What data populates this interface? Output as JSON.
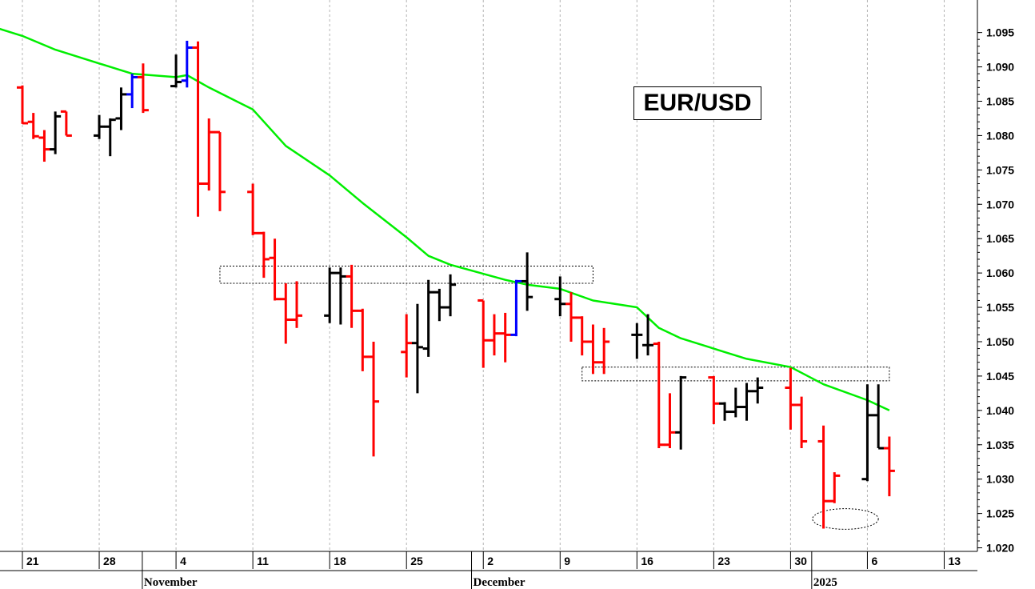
{
  "chart_data": {
    "type": "ohlc",
    "title": "EUR/USD",
    "ylim": [
      1.0175,
      1.0995
    ],
    "y_ticks": [
      "1.020",
      "1.025",
      "1.030",
      "1.035",
      "1.040",
      "1.045",
      "1.050",
      "1.055",
      "1.060",
      "1.065",
      "1.070",
      "1.075",
      "1.080",
      "1.085",
      "1.090",
      "1.095"
    ],
    "x_ticks": [
      {
        "date": "2024-10-21",
        "label": "21"
      },
      {
        "date": "2024-10-28",
        "label": "28"
      },
      {
        "date": "2024-11-04",
        "label": "4"
      },
      {
        "date": "2024-11-11",
        "label": "11"
      },
      {
        "date": "2024-11-18",
        "label": "18"
      },
      {
        "date": "2024-11-25",
        "label": "25"
      },
      {
        "date": "2024-12-02",
        "label": "2"
      },
      {
        "date": "2024-12-09",
        "label": "9"
      },
      {
        "date": "2024-12-16",
        "label": "16"
      },
      {
        "date": "2024-12-23",
        "label": "23"
      },
      {
        "date": "2024-12-30",
        "label": "30"
      },
      {
        "date": "2025-01-06",
        "label": "6"
      },
      {
        "date": "2025-01-13",
        "label": "13"
      }
    ],
    "months": [
      {
        "date": "2024-11-01",
        "label": "November"
      },
      {
        "date": "2024-12-01",
        "label": "December"
      },
      {
        "date": "2025-01-01",
        "label": "2025"
      }
    ],
    "colors": {
      "up": "#000000",
      "down": "#ff0000",
      "outside": "#0000ff",
      "ma": "#00ee00",
      "grid": "#b4b4b4"
    },
    "bars": [
      {
        "d": "2024-10-17",
        "o": 1.0845,
        "h": 1.087,
        "l": 1.0822,
        "c": 1.0833,
        "k": "down"
      },
      {
        "d": "2024-10-18",
        "o": 1.086,
        "h": 1.0873,
        "l": 1.0828,
        "c": 1.0866,
        "k": "down"
      },
      {
        "d": "2024-10-21",
        "o": 1.087,
        "h": 1.0873,
        "l": 1.0817,
        "c": 1.0818,
        "k": "down"
      },
      {
        "d": "2024-10-22",
        "o": 1.082,
        "h": 1.0833,
        "l": 1.0795,
        "c": 1.0799,
        "k": "down"
      },
      {
        "d": "2024-10-23",
        "o": 1.0797,
        "h": 1.0808,
        "l": 1.0762,
        "c": 1.078,
        "k": "down"
      },
      {
        "d": "2024-10-24",
        "o": 1.078,
        "h": 1.0835,
        "l": 1.0773,
        "c": 1.0828,
        "k": "up"
      },
      {
        "d": "2024-10-25",
        "o": 1.0835,
        "h": 1.0835,
        "l": 1.08,
        "c": 1.08,
        "k": "down"
      },
      {
        "d": "2024-10-28",
        "o": 1.08,
        "h": 1.083,
        "l": 1.0795,
        "c": 1.0813,
        "k": "up"
      },
      {
        "d": "2024-10-29",
        "o": 1.0813,
        "h": 1.0825,
        "l": 1.077,
        "c": 1.0823,
        "k": "up"
      },
      {
        "d": "2024-10-30",
        "o": 1.0825,
        "h": 1.087,
        "l": 1.0808,
        "c": 1.086,
        "k": "up"
      },
      {
        "d": "2024-10-31",
        "o": 1.086,
        "h": 1.089,
        "l": 1.084,
        "c": 1.0885,
        "k": "outside"
      },
      {
        "d": "2024-11-01",
        "o": 1.0885,
        "h": 1.0905,
        "l": 1.0833,
        "c": 1.0837,
        "k": "down"
      },
      {
        "d": "2024-11-04",
        "o": 1.0872,
        "h": 1.0918,
        "l": 1.087,
        "c": 1.0878,
        "k": "up"
      },
      {
        "d": "2024-11-05",
        "o": 1.088,
        "h": 1.0938,
        "l": 1.087,
        "c": 1.0928,
        "k": "outside"
      },
      {
        "d": "2024-11-06",
        "o": 1.0928,
        "h": 1.0937,
        "l": 1.0682,
        "c": 1.073,
        "k": "down"
      },
      {
        "d": "2024-11-07",
        "o": 1.073,
        "h": 1.0825,
        "l": 1.072,
        "c": 1.0805,
        "k": "down"
      },
      {
        "d": "2024-11-08",
        "o": 1.0805,
        "h": 1.0805,
        "l": 1.069,
        "c": 1.0718,
        "k": "down"
      },
      {
        "d": "2024-11-11",
        "o": 1.0718,
        "h": 1.073,
        "l": 1.0655,
        "c": 1.0658,
        "k": "down"
      },
      {
        "d": "2024-11-12",
        "o": 1.0658,
        "h": 1.066,
        "l": 1.0593,
        "c": 1.062,
        "k": "down"
      },
      {
        "d": "2024-11-13",
        "o": 1.0622,
        "h": 1.065,
        "l": 1.056,
        "c": 1.0562,
        "k": "down"
      },
      {
        "d": "2024-11-14",
        "o": 1.0562,
        "h": 1.0585,
        "l": 1.0497,
        "c": 1.0532,
        "k": "down"
      },
      {
        "d": "2024-11-15",
        "o": 1.0532,
        "h": 1.0588,
        "l": 1.052,
        "c": 1.0538,
        "k": "down"
      },
      {
        "d": "2024-11-18",
        "o": 1.0538,
        "h": 1.0608,
        "l": 1.0527,
        "c": 1.06,
        "k": "up"
      },
      {
        "d": "2024-11-19",
        "o": 1.06,
        "h": 1.0608,
        "l": 1.0525,
        "c": 1.0595,
        "k": "up"
      },
      {
        "d": "2024-11-20",
        "o": 1.0595,
        "h": 1.0612,
        "l": 1.052,
        "c": 1.0545,
        "k": "down"
      },
      {
        "d": "2024-11-21",
        "o": 1.0545,
        "h": 1.0548,
        "l": 1.0457,
        "c": 1.0478,
        "k": "down"
      },
      {
        "d": "2024-11-22",
        "o": 1.0478,
        "h": 1.05,
        "l": 1.0333,
        "c": 1.0413,
        "k": "down"
      },
      {
        "d": "2024-11-25",
        "o": 1.0485,
        "h": 1.054,
        "l": 1.0448,
        "c": 1.0498,
        "k": "down"
      },
      {
        "d": "2024-11-26",
        "o": 1.0498,
        "h": 1.0555,
        "l": 1.0425,
        "c": 1.0492,
        "k": "up"
      },
      {
        "d": "2024-11-27",
        "o": 1.049,
        "h": 1.059,
        "l": 1.0478,
        "c": 1.0572,
        "k": "up"
      },
      {
        "d": "2024-11-28",
        "o": 1.0572,
        "h": 1.0577,
        "l": 1.053,
        "c": 1.055,
        "k": "up"
      },
      {
        "d": "2024-11-29",
        "o": 1.055,
        "h": 1.0598,
        "l": 1.0537,
        "c": 1.0583,
        "k": "up"
      },
      {
        "d": "2024-12-02",
        "o": 1.056,
        "h": 1.056,
        "l": 1.0462,
        "c": 1.0502,
        "k": "down"
      },
      {
        "d": "2024-12-03",
        "o": 1.0502,
        "h": 1.054,
        "l": 1.048,
        "c": 1.0512,
        "k": "down"
      },
      {
        "d": "2024-12-04",
        "o": 1.0512,
        "h": 1.0542,
        "l": 1.047,
        "c": 1.051,
        "k": "down"
      },
      {
        "d": "2024-12-05",
        "o": 1.051,
        "h": 1.059,
        "l": 1.0508,
        "c": 1.0588,
        "k": "outside"
      },
      {
        "d": "2024-12-06",
        "o": 1.0588,
        "h": 1.063,
        "l": 1.0545,
        "c": 1.0565,
        "k": "up"
      },
      {
        "d": "2024-12-09",
        "o": 1.0562,
        "h": 1.0595,
        "l": 1.0537,
        "c": 1.0555,
        "k": "up"
      },
      {
        "d": "2024-12-10",
        "o": 1.0555,
        "h": 1.0572,
        "l": 1.05,
        "c": 1.0535,
        "k": "down"
      },
      {
        "d": "2024-12-11",
        "o": 1.0535,
        "h": 1.0537,
        "l": 1.048,
        "c": 1.05,
        "k": "down"
      },
      {
        "d": "2024-12-12",
        "o": 1.05,
        "h": 1.0525,
        "l": 1.0453,
        "c": 1.047,
        "k": "down"
      },
      {
        "d": "2024-12-13",
        "o": 1.047,
        "h": 1.052,
        "l": 1.0453,
        "c": 1.05,
        "k": "down"
      },
      {
        "d": "2024-12-16",
        "o": 1.051,
        "h": 1.0527,
        "l": 1.0475,
        "c": 1.051,
        "k": "up"
      },
      {
        "d": "2024-12-17",
        "o": 1.0495,
        "h": 1.054,
        "l": 1.048,
        "c": 1.0495,
        "k": "up"
      },
      {
        "d": "2024-12-18",
        "o": 1.0497,
        "h": 1.05,
        "l": 1.0345,
        "c": 1.035,
        "k": "down"
      },
      {
        "d": "2024-12-19",
        "o": 1.035,
        "h": 1.0425,
        "l": 1.0345,
        "c": 1.0368,
        "k": "down"
      },
      {
        "d": "2024-12-20",
        "o": 1.0368,
        "h": 1.045,
        "l": 1.0343,
        "c": 1.0448,
        "k": "up"
      },
      {
        "d": "2024-12-23",
        "o": 1.0448,
        "h": 1.045,
        "l": 1.038,
        "c": 1.041,
        "k": "down"
      },
      {
        "d": "2024-12-24",
        "o": 1.041,
        "h": 1.0412,
        "l": 1.0385,
        "c": 1.0398,
        "k": "up"
      },
      {
        "d": "2024-12-25",
        "o": 1.0398,
        "h": 1.0433,
        "l": 1.039,
        "c": 1.0405,
        "k": "up"
      },
      {
        "d": "2024-12-26",
        "o": 1.0405,
        "h": 1.044,
        "l": 1.0385,
        "c": 1.0428,
        "k": "up"
      },
      {
        "d": "2024-12-27",
        "o": 1.0428,
        "h": 1.0448,
        "l": 1.041,
        "c": 1.0433,
        "k": "up"
      },
      {
        "d": "2024-12-30",
        "o": 1.0433,
        "h": 1.0462,
        "l": 1.0372,
        "c": 1.0408,
        "k": "down"
      },
      {
        "d": "2024-12-31",
        "o": 1.0408,
        "h": 1.042,
        "l": 1.0345,
        "c": 1.0355,
        "k": "down"
      },
      {
        "d": "2025-01-02",
        "o": 1.0355,
        "h": 1.0378,
        "l": 1.0228,
        "c": 1.0268,
        "k": "down"
      },
      {
        "d": "2025-01-03",
        "o": 1.0268,
        "h": 1.031,
        "l": 1.0265,
        "c": 1.0305,
        "k": "down"
      },
      {
        "d": "2025-01-06",
        "o": 1.03,
        "h": 1.0438,
        "l": 1.0297,
        "c": 1.0393,
        "k": "up"
      },
      {
        "d": "2025-01-07",
        "o": 1.0393,
        "h": 1.0438,
        "l": 1.0345,
        "c": 1.0345,
        "k": "up"
      },
      {
        "d": "2025-01-08",
        "o": 1.0345,
        "h": 1.0362,
        "l": 1.0275,
        "c": 1.0312,
        "k": "down"
      }
    ],
    "moving_average": [
      {
        "d": "2024-10-16",
        "v": 1.097
      },
      {
        "d": "2024-10-21",
        "v": 1.0945
      },
      {
        "d": "2024-10-24",
        "v": 1.0925
      },
      {
        "d": "2024-10-28",
        "v": 1.0905
      },
      {
        "d": "2024-10-31",
        "v": 1.089
      },
      {
        "d": "2024-11-04",
        "v": 1.0885
      },
      {
        "d": "2024-11-05",
        "v": 1.0888
      },
      {
        "d": "2024-11-07",
        "v": 1.087
      },
      {
        "d": "2024-11-11",
        "v": 1.0838
      },
      {
        "d": "2024-11-14",
        "v": 1.0785
      },
      {
        "d": "2024-11-18",
        "v": 1.0742
      },
      {
        "d": "2024-11-21",
        "v": 1.0702
      },
      {
        "d": "2024-11-25",
        "v": 1.0652
      },
      {
        "d": "2024-11-27",
        "v": 1.0625
      },
      {
        "d": "2024-11-29",
        "v": 1.0612
      },
      {
        "d": "2024-12-04",
        "v": 1.059
      },
      {
        "d": "2024-12-06",
        "v": 1.0583
      },
      {
        "d": "2024-12-09",
        "v": 1.0577
      },
      {
        "d": "2024-12-12",
        "v": 1.056
      },
      {
        "d": "2024-12-16",
        "v": 1.055
      },
      {
        "d": "2024-12-18",
        "v": 1.052
      },
      {
        "d": "2024-12-20",
        "v": 1.0505
      },
      {
        "d": "2024-12-24",
        "v": 1.0485
      },
      {
        "d": "2024-12-26",
        "v": 1.0475
      },
      {
        "d": "2024-12-30",
        "v": 1.0463
      },
      {
        "d": "2025-01-02",
        "v": 1.0438
      },
      {
        "d": "2025-01-06",
        "v": 1.0415
      },
      {
        "d": "2025-01-08",
        "v": 1.04
      }
    ],
    "rectangles": [
      {
        "d1": "2024-11-08",
        "d2": "2024-12-12",
        "top": 1.061,
        "bottom": 1.0585
      },
      {
        "d1": "2024-12-11",
        "d2": "2025-01-08",
        "top": 1.0463,
        "bottom": 1.0443
      }
    ],
    "ellipse": {
      "d1": "2025-01-01",
      "d2": "2025-01-07",
      "center": 1.0242,
      "span": 0.003
    }
  }
}
